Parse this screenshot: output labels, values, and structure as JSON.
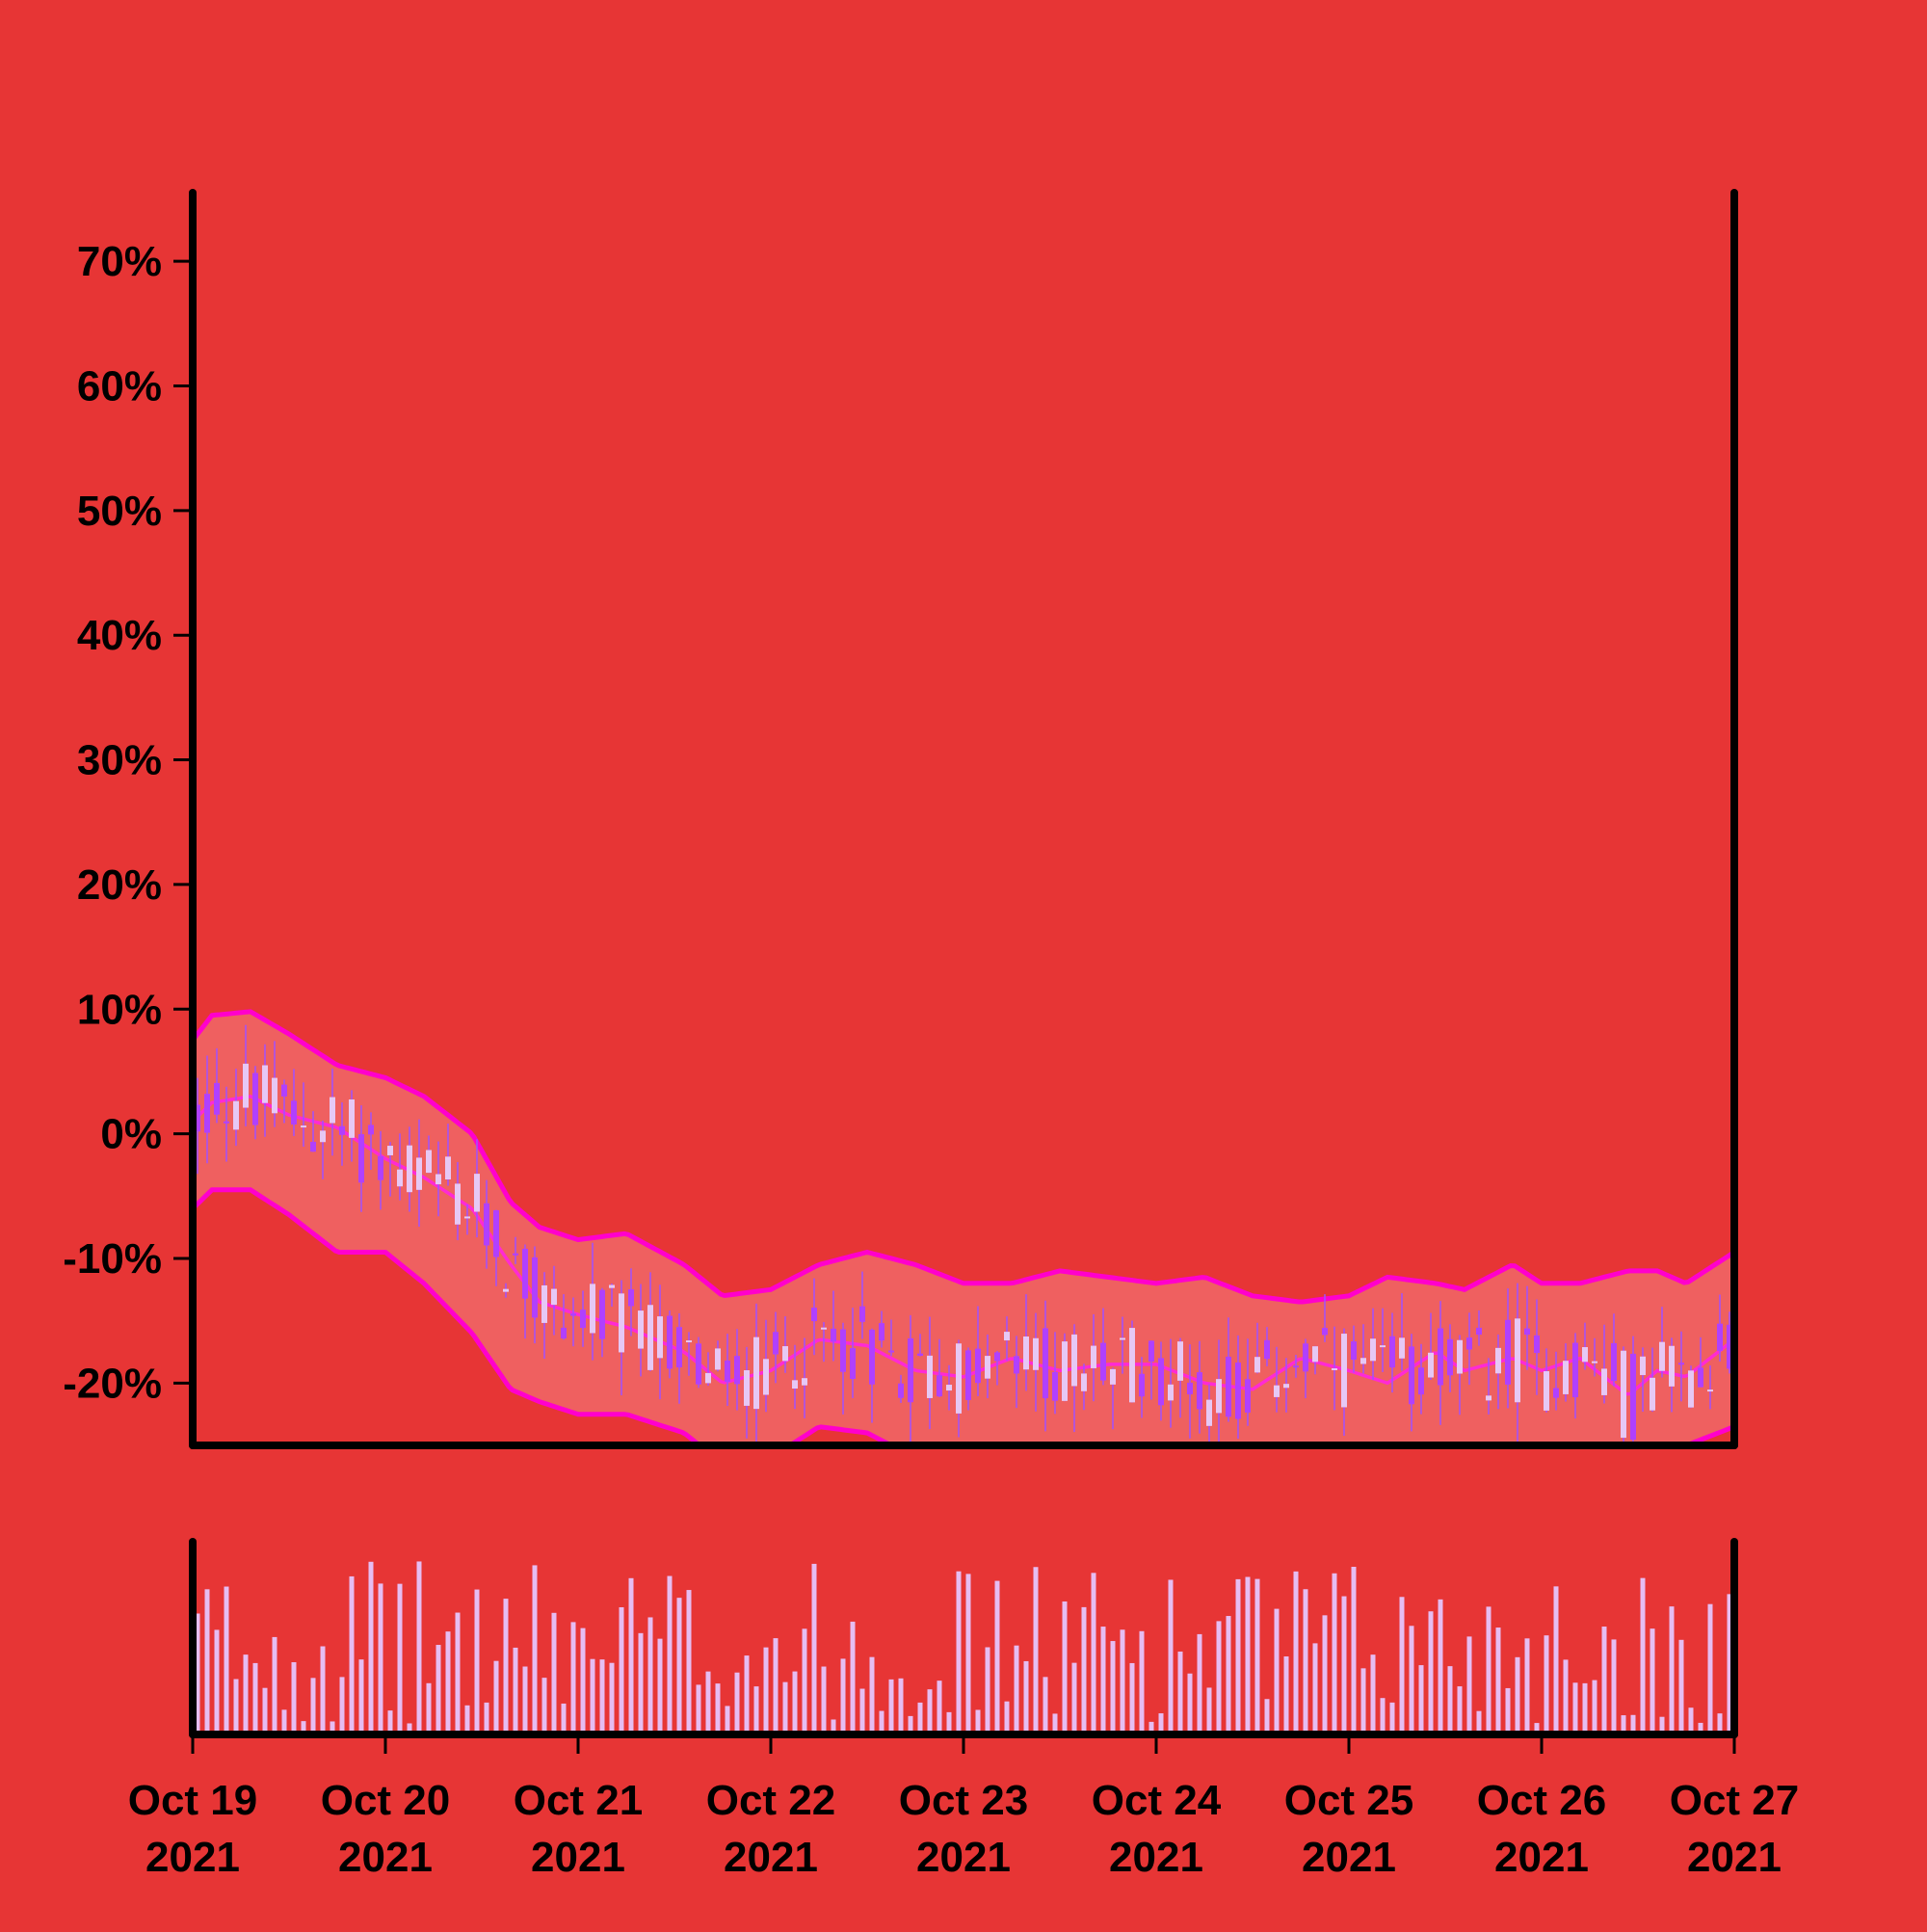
{
  "chart_data": {
    "type": "candlestick",
    "y_tick_labels": [
      "70%",
      "60%",
      "50%",
      "40%",
      "30%",
      "20%",
      "10%",
      "0%",
      "-10%",
      "-20%"
    ],
    "y_ticks": [
      70,
      60,
      50,
      40,
      30,
      20,
      10,
      0,
      -10,
      -20
    ],
    "ylim": [
      -25,
      75.5
    ],
    "x_tick_labels": [
      {
        "date": "Oct 19",
        "year": "2021"
      },
      {
        "date": "Oct 20",
        "year": "2021"
      },
      {
        "date": "Oct 21",
        "year": "2021"
      },
      {
        "date": "Oct 22",
        "year": "2021"
      },
      {
        "date": "Oct 23",
        "year": "2021"
      },
      {
        "date": "Oct 24",
        "year": "2021"
      },
      {
        "date": "Oct 25",
        "year": "2021"
      },
      {
        "date": "Oct 26",
        "year": "2021"
      },
      {
        "date": "Oct 27",
        "year": "2021"
      }
    ],
    "xlim": [
      "2021-10-19",
      "2021-10-27"
    ],
    "bands_profile": {
      "x_day": [
        0.0,
        0.1,
        0.3,
        0.5,
        0.75,
        1.0,
        1.2,
        1.45,
        1.65,
        1.8,
        2.0,
        2.25,
        2.55,
        2.75,
        3.0,
        3.25,
        3.5,
        3.75,
        4.0,
        4.25,
        4.5,
        4.75,
        5.0,
        5.25,
        5.5,
        5.75,
        6.0,
        6.2,
        6.45,
        6.6,
        6.85,
        7.0,
        7.2,
        7.45,
        7.6,
        7.75,
        8.0
      ],
      "middle": [
        1,
        2.5,
        3.0,
        1.5,
        0.5,
        -2.0,
        -3.5,
        -6.0,
        -10.5,
        -13.5,
        -14.5,
        -15.5,
        -17.5,
        -20.0,
        -19.0,
        -16.5,
        -17.0,
        -19.0,
        -19.5,
        -18.0,
        -19.0,
        -18.5,
        -18.5,
        -20.0,
        -20.5,
        -18.0,
        -19.0,
        -20.0,
        -17.5,
        -19.0,
        -18.0,
        -19.0,
        -18.0,
        -21.0,
        -19.0,
        -19.5,
        -16.5
      ],
      "upper": [
        7.5,
        9.5,
        9.8,
        8.0,
        5.5,
        4.5,
        3.0,
        0.0,
        -5.5,
        -7.5,
        -8.5,
        -8.0,
        -10.5,
        -13.0,
        -12.5,
        -10.5,
        -9.5,
        -10.5,
        -12.0,
        -12.0,
        -11.0,
        -11.5,
        -12.0,
        -11.5,
        -13.0,
        -13.5,
        -13.0,
        -11.5,
        -12.0,
        -12.5,
        -10.5,
        -12.0,
        -12.0,
        -11.0,
        -11.0,
        -12.0,
        -9.5
      ],
      "lower": [
        -6.0,
        -4.5,
        -4.5,
        -6.5,
        -9.5,
        -9.5,
        -12.0,
        -16.0,
        -20.5,
        -21.5,
        -22.5,
        -22.5,
        -24.0,
        -26.5,
        -26.0,
        -23.5,
        -24.0,
        -26.0,
        -26.5,
        -25.5,
        -26.5,
        -26.5,
        -26.5,
        -27.5,
        -28.0,
        -26.0,
        -27.0,
        -28.0,
        -25.5,
        -27.0,
        -26.5,
        -27.0,
        -26.0,
        -29.0,
        -27.0,
        -25.0,
        -23.5
      ]
    },
    "candles_per_day": 20,
    "volume_panel": true,
    "colors": {
      "background": "#e73535",
      "band_fill": "#ef6060",
      "band_line": "#ff00cc",
      "middle_line": "#ff2ad4",
      "candle_up": "#e6c8f5",
      "candle_down": "#b040ff",
      "wick": "#a050ff",
      "volume_bar": "#e6bdf2",
      "axis": "#000000"
    }
  }
}
